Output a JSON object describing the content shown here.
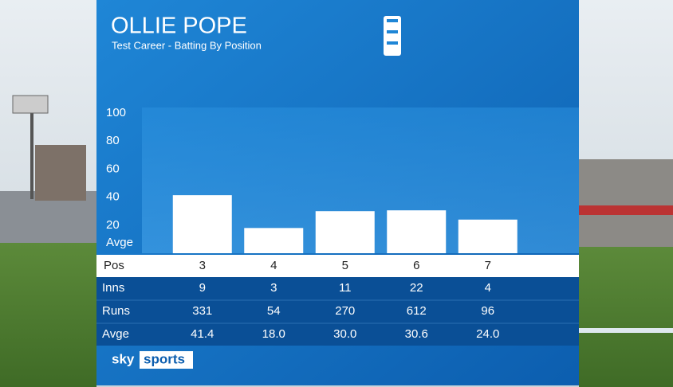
{
  "header": {
    "title": "OLLIE POPE",
    "subtitle": "Test Career - Batting By Position"
  },
  "chart_data": {
    "type": "bar",
    "category_label": "Pos",
    "y_label": "Avge",
    "value_row_label": "Avge",
    "categories": [
      "3",
      "4",
      "5",
      "6",
      "7"
    ],
    "values": [
      41.4,
      18,
      30,
      30.6,
      24
    ],
    "value_labels": [
      "41.4",
      "18.0",
      "30.0",
      "30.6",
      "24.0"
    ],
    "ylim": [
      0,
      100
    ],
    "yticks": [
      20,
      40,
      60,
      80,
      100
    ],
    "color": "#ffffff"
  },
  "table": {
    "rows": [
      {
        "label": "Inns",
        "values": [
          9,
          3,
          11,
          22,
          4
        ]
      },
      {
        "label": "Runs",
        "values": [
          331,
          54,
          270,
          612,
          96
        ]
      }
    ]
  },
  "brand": {
    "sky": "sky",
    "sports": "sports"
  }
}
